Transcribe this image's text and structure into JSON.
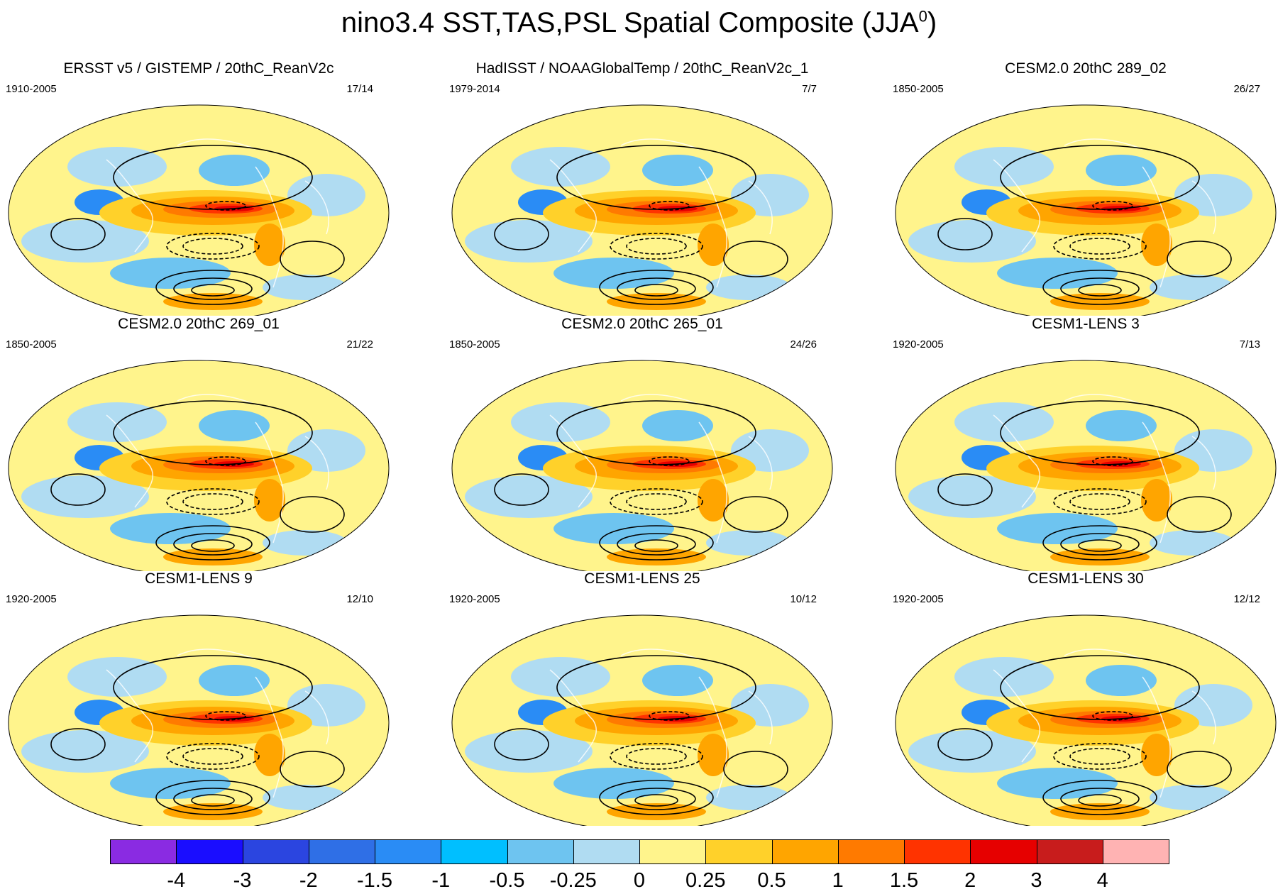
{
  "figure": {
    "title": "nino3.4 SST,TAS,PSL Spatial Composite (JJA",
    "title_superscript": "0",
    "title_close": ")"
  },
  "panels": [
    {
      "title": "ERSST v5 / GISTEMP / 20thC_ReanV2c",
      "years": "1910-2005",
      "count": "17/14"
    },
    {
      "title": "HadISST / NOAAGlobalTemp / 20thC_ReanV2c_1",
      "years": "1979-2014",
      "count": "7/7"
    },
    {
      "title": "CESM2.0 20thC 289_02",
      "years": "1850-2005",
      "count": "26/27"
    },
    {
      "title": "CESM2.0 20thC 269_01",
      "years": "1850-2005",
      "count": "21/22"
    },
    {
      "title": "CESM2.0 20thC 265_01",
      "years": "1850-2005",
      "count": "24/26"
    },
    {
      "title": "CESM1-LENS 3",
      "years": "1920-2005",
      "count": "7/13"
    },
    {
      "title": "CESM1-LENS 9",
      "years": "1920-2005",
      "count": "12/10"
    },
    {
      "title": "CESM1-LENS 25",
      "years": "1920-2005",
      "count": "10/12"
    },
    {
      "title": "CESM1-LENS 30",
      "years": "1920-2005",
      "count": "12/12"
    }
  ],
  "colorbar": {
    "colors": [
      "#8a2be2",
      "#1a0dff",
      "#2b45e0",
      "#2f6fe6",
      "#2a8cf5",
      "#00bfff",
      "#6ec4f0",
      "#b0dcf2",
      "#fff48c",
      "#ffd12a",
      "#ffa500",
      "#ff7a00",
      "#ff3300",
      "#e60000",
      "#c81c1c",
      "#ffb3b3"
    ],
    "labels": [
      "-4",
      "-3",
      "-2",
      "-1.5",
      "-1",
      "-0.5",
      "-0.25",
      "0",
      "0.25",
      "0.5",
      "1",
      "1.5",
      "2",
      "3",
      "4"
    ]
  }
}
